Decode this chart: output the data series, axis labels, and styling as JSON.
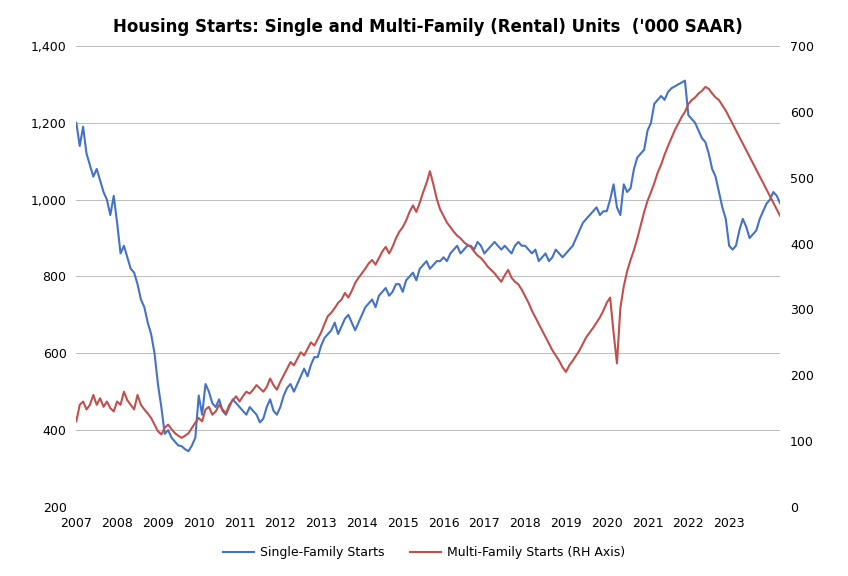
{
  "title": "Housing Starts: Single and Multi-Family (Rental) Units  ('000 SAAR)",
  "left_ylim": [
    200,
    1400
  ],
  "right_ylim": [
    0,
    700
  ],
  "left_yticks": [
    200,
    400,
    600,
    800,
    1000,
    1200,
    1400
  ],
  "right_yticks": [
    0,
    100,
    200,
    300,
    400,
    500,
    600,
    700
  ],
  "xlim_start": 2007.0,
  "xlim_end": 2024.25,
  "xticks": [
    2007,
    2008,
    2009,
    2010,
    2011,
    2012,
    2013,
    2014,
    2015,
    2016,
    2017,
    2018,
    2019,
    2020,
    2021,
    2022,
    2023
  ],
  "single_color": "#4472C4",
  "multi_color": "#C0504D",
  "line_width": 1.5,
  "legend_single": "Single-Family Starts",
  "legend_multi": "Multi-Family Starts (RH Axis)",
  "background_color": "#FFFFFF",
  "grid_color": "#BBBBBB",
  "single_family": [
    1200,
    1140,
    1190,
    1120,
    1090,
    1060,
    1080,
    1050,
    1020,
    1000,
    960,
    1010,
    940,
    860,
    880,
    850,
    820,
    810,
    780,
    740,
    720,
    680,
    650,
    600,
    520,
    460,
    390,
    400,
    380,
    370,
    360,
    358,
    350,
    345,
    360,
    380,
    490,
    440,
    520,
    500,
    470,
    460,
    480,
    450,
    440,
    460,
    480,
    470,
    460,
    450,
    440,
    460,
    450,
    440,
    420,
    430,
    460,
    480,
    450,
    440,
    460,
    490,
    510,
    520,
    500,
    520,
    540,
    560,
    540,
    570,
    590,
    590,
    620,
    640,
    650,
    660,
    680,
    650,
    670,
    690,
    700,
    680,
    660,
    680,
    700,
    720,
    730,
    740,
    720,
    750,
    760,
    770,
    750,
    760,
    780,
    780,
    760,
    790,
    800,
    810,
    790,
    820,
    830,
    840,
    820,
    830,
    840,
    840,
    850,
    840,
    860,
    870,
    880,
    860,
    870,
    880,
    880,
    870,
    890,
    880,
    860,
    870,
    880,
    890,
    880,
    870,
    880,
    870,
    860,
    880,
    890,
    880,
    880,
    870,
    860,
    870,
    840,
    850,
    860,
    840,
    850,
    870,
    860,
    850,
    860,
    870,
    880,
    900,
    920,
    940,
    950,
    960,
    970,
    980,
    960,
    970,
    970,
    1000,
    1040,
    980,
    960,
    1040,
    1020,
    1030,
    1080,
    1110,
    1120,
    1130,
    1180,
    1200,
    1250,
    1260,
    1270,
    1260,
    1280,
    1290,
    1295,
    1300,
    1305,
    1310,
    1220,
    1210,
    1200,
    1180,
    1160,
    1150,
    1120,
    1080,
    1060,
    1020,
    980,
    950,
    880,
    870,
    880,
    920,
    950,
    930,
    900,
    910,
    920,
    950,
    970,
    990,
    1000,
    1020,
    1010,
    990,
    980,
    970,
    960,
    950
  ],
  "multi_family": [
    130,
    155,
    160,
    148,
    155,
    170,
    155,
    165,
    152,
    160,
    150,
    145,
    160,
    155,
    175,
    162,
    155,
    148,
    170,
    155,
    148,
    142,
    135,
    125,
    115,
    110,
    120,
    125,
    118,
    112,
    108,
    105,
    108,
    112,
    120,
    128,
    135,
    130,
    148,
    152,
    140,
    145,
    155,
    148,
    142,
    155,
    162,
    168,
    160,
    168,
    175,
    172,
    178,
    185,
    180,
    175,
    182,
    195,
    185,
    178,
    190,
    200,
    210,
    220,
    215,
    225,
    235,
    230,
    240,
    250,
    245,
    255,
    265,
    278,
    290,
    295,
    302,
    310,
    315,
    325,
    318,
    328,
    340,
    348,
    355,
    362,
    370,
    375,
    368,
    378,
    388,
    395,
    385,
    395,
    408,
    418,
    425,
    435,
    448,
    458,
    448,
    462,
    478,
    492,
    510,
    490,
    468,
    452,
    442,
    432,
    425,
    418,
    412,
    408,
    402,
    398,
    395,
    388,
    382,
    378,
    372,
    365,
    360,
    355,
    348,
    342,
    352,
    360,
    348,
    342,
    338,
    330,
    320,
    310,
    298,
    288,
    278,
    268,
    258,
    248,
    238,
    230,
    222,
    212,
    205,
    215,
    222,
    230,
    238,
    248,
    258,
    265,
    272,
    280,
    288,
    298,
    310,
    318,
    265,
    218,
    302,
    335,
    358,
    375,
    390,
    408,
    428,
    448,
    465,
    478,
    492,
    508,
    520,
    535,
    548,
    560,
    572,
    582,
    592,
    600,
    612,
    618,
    622,
    628,
    632,
    638,
    635,
    628,
    622,
    618,
    610,
    602,
    592,
    582,
    572,
    562,
    552,
    542,
    532,
    522,
    512,
    502,
    492,
    482,
    472,
    462,
    452,
    442,
    432,
    422,
    412,
    370
  ]
}
